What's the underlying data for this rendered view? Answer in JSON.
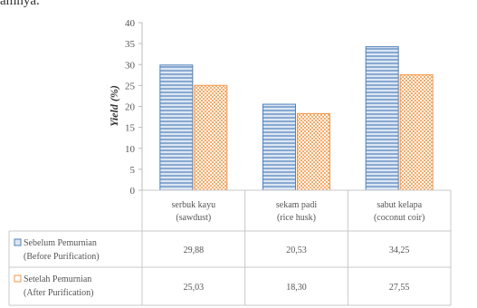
{
  "caption_fragment": "amnya.",
  "chart_data": {
    "type": "bar",
    "ylabel": "Yield (%)",
    "ylim": [
      0,
      40
    ],
    "yticks": [
      "0",
      "5",
      "10",
      "15",
      "20",
      "25",
      "30",
      "35",
      "40"
    ],
    "categories": [
      [
        "serbuk kayu",
        "(sawdust)"
      ],
      [
        "sekam padi",
        "(rice husk)"
      ],
      [
        "sabut kelapa",
        "(coconut coir)"
      ]
    ],
    "series": [
      {
        "name": [
          "Sebelum Pemurnian",
          "(Before Purification)"
        ],
        "values": [
          29.88,
          20.53,
          34.25
        ],
        "labels": [
          "29,88",
          "20,53",
          "34,25"
        ],
        "color": "#4f81bd",
        "fill": "#dce6f2"
      },
      {
        "name": [
          "Setelah Pemurnian",
          "(After Purification)"
        ],
        "values": [
          25.03,
          18.3,
          27.55
        ],
        "labels": [
          "25,03",
          "18,30",
          "27,55"
        ],
        "color": "#f79646",
        "fill": "#fde9d9"
      }
    ],
    "grid": false,
    "legend": "table-left"
  }
}
